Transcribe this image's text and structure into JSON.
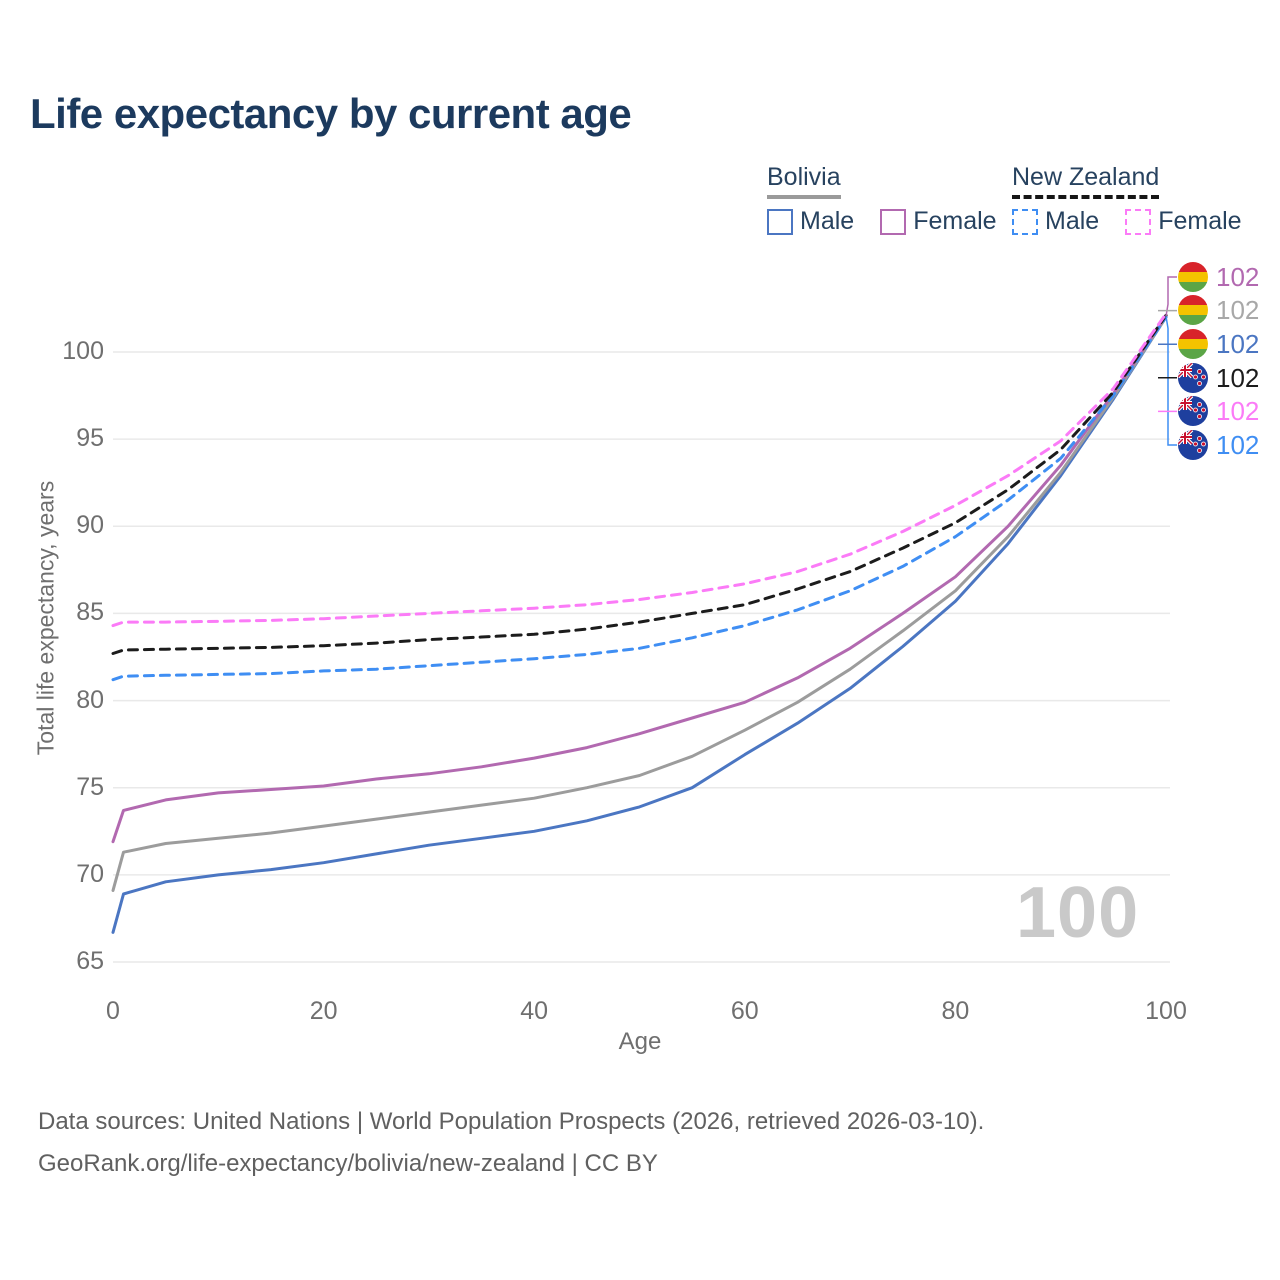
{
  "page": {
    "title": "Life expectancy by current age"
  },
  "legend": {
    "groups": [
      {
        "country": "Bolivia",
        "line_style": "solid",
        "line_color": "#9a9a9a",
        "items": [
          {
            "label": "Male",
            "color": "#4b76c2",
            "dashed": false
          },
          {
            "label": "Female",
            "color": "#b269b0",
            "dashed": false
          }
        ]
      },
      {
        "country": "New Zealand",
        "line_style": "dashed",
        "line_color": "#161616",
        "items": [
          {
            "label": "Male",
            "color": "#3f8ef3",
            "dashed": true
          },
          {
            "label": "Female",
            "color": "#fb7bf7",
            "dashed": true
          }
        ]
      }
    ]
  },
  "watermark": "100",
  "end_labels": [
    {
      "flag": "bolivia",
      "country": "Bolivia",
      "series": "Female",
      "value": "102",
      "color": "#b269b0"
    },
    {
      "flag": "bolivia",
      "country": "Bolivia",
      "series": "Both sexes",
      "value": "102",
      "color": "#a8a8a8"
    },
    {
      "flag": "bolivia",
      "country": "Bolivia",
      "series": "Male",
      "value": "102",
      "color": "#4b76c2"
    },
    {
      "flag": "new-zealand",
      "country": "New Zealand",
      "series": "Both sexes",
      "value": "102",
      "color": "#1c1c1c"
    },
    {
      "flag": "new-zealand",
      "country": "New Zealand",
      "series": "Female",
      "value": "102",
      "color": "#fb7bf7"
    },
    {
      "flag": "new-zealand",
      "country": "New Zealand",
      "series": "Male",
      "value": "102",
      "color": "#3f8ef3"
    }
  ],
  "footer": {
    "line1": "Data sources: United Nations | World Population Prospects (2026, retrieved 2026-03-10).",
    "line2": "GeoRank.org/life-expectancy/bolivia/new-zealand | CC BY"
  },
  "chart_data": {
    "type": "line",
    "title": "Life expectancy by current age",
    "xlabel": "Age",
    "ylabel": "Total life expectancy, years",
    "xlim": [
      0,
      100
    ],
    "ylim": [
      65,
      102.5
    ],
    "x_ticks": [
      0,
      20,
      40,
      60,
      80,
      100
    ],
    "y_ticks": [
      65,
      70,
      75,
      80,
      85,
      90,
      95,
      100
    ],
    "grid": "horizontal",
    "legend_position": "top-right",
    "x": [
      0,
      1,
      5,
      10,
      15,
      20,
      25,
      30,
      35,
      40,
      45,
      50,
      55,
      60,
      65,
      70,
      75,
      80,
      85,
      90,
      95,
      100
    ],
    "series": [
      {
        "name": "Bolivia Male",
        "color": "#4b76c2",
        "dashed": false,
        "values": [
          66.7,
          68.9,
          69.6,
          70.0,
          70.3,
          70.7,
          71.2,
          71.7,
          72.1,
          72.5,
          73.1,
          73.9,
          75.0,
          76.9,
          78.7,
          80.7,
          83.1,
          85.7,
          89.0,
          92.9,
          97.3,
          102.0
        ]
      },
      {
        "name": "Bolivia Both sexes",
        "color": "#9c9c9c",
        "dashed": false,
        "values": [
          69.1,
          71.3,
          71.8,
          72.1,
          72.4,
          72.8,
          73.2,
          73.6,
          74.0,
          74.4,
          75.0,
          75.7,
          76.8,
          78.3,
          79.9,
          81.8,
          84.0,
          86.3,
          89.4,
          93.1,
          97.4,
          102.0
        ]
      },
      {
        "name": "Bolivia Female",
        "color": "#b269b0",
        "dashed": false,
        "values": [
          71.9,
          73.7,
          74.3,
          74.7,
          74.9,
          75.1,
          75.5,
          75.8,
          76.2,
          76.7,
          77.3,
          78.1,
          79.0,
          79.9,
          81.3,
          83.0,
          85.0,
          87.1,
          90.0,
          93.5,
          97.6,
          102.1
        ]
      },
      {
        "name": "New Zealand Male",
        "color": "#3f8ef3",
        "dashed": true,
        "values": [
          81.2,
          81.4,
          81.45,
          81.5,
          81.55,
          81.7,
          81.8,
          82.0,
          82.2,
          82.4,
          82.65,
          83.0,
          83.6,
          84.3,
          85.2,
          86.3,
          87.7,
          89.4,
          91.5,
          93.9,
          97.5,
          102.0
        ]
      },
      {
        "name": "New Zealand Both sexes",
        "color": "#1c1c1c",
        "dashed": true,
        "values": [
          82.7,
          82.9,
          82.95,
          83.0,
          83.05,
          83.15,
          83.3,
          83.5,
          83.65,
          83.8,
          84.1,
          84.5,
          85.0,
          85.5,
          86.4,
          87.4,
          88.75,
          90.2,
          92.1,
          94.4,
          97.7,
          102.1
        ]
      },
      {
        "name": "New Zealand Female",
        "color": "#fb7bf7",
        "dashed": true,
        "values": [
          84.3,
          84.5,
          84.5,
          84.55,
          84.6,
          84.7,
          84.85,
          85.0,
          85.15,
          85.3,
          85.5,
          85.8,
          86.2,
          86.7,
          87.4,
          88.4,
          89.7,
          91.2,
          92.9,
          94.9,
          97.9,
          102.2
        ]
      }
    ]
  }
}
